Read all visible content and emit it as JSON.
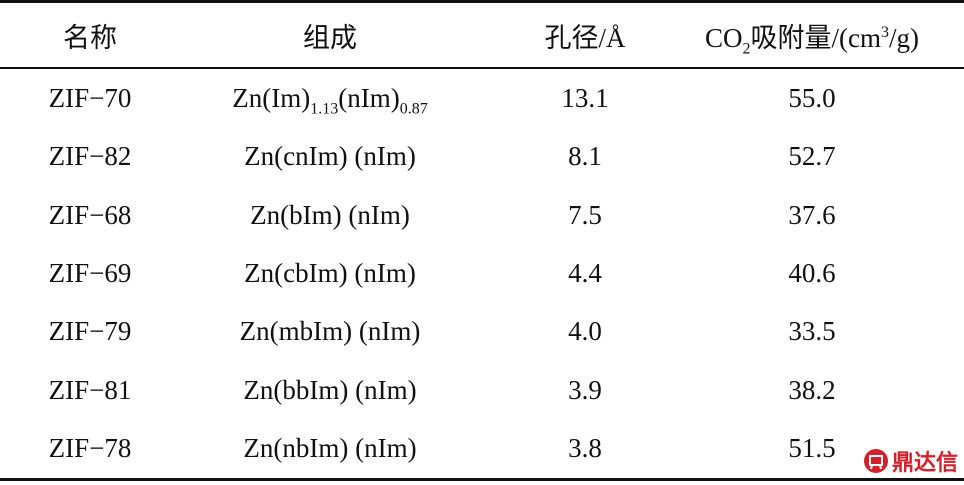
{
  "table": {
    "header": [
      "名称",
      "组成",
      "孔径/Å",
      [
        {
          "text": "CO"
        },
        {
          "sub": "2"
        },
        {
          "text": "吸附量/(cm"
        },
        {
          "sup": "3"
        },
        {
          "text": "/g)"
        }
      ]
    ],
    "rows": [
      [
        "ZIF−70",
        [
          {
            "text": "Zn(Im)"
          },
          {
            "sub": "1.13"
          },
          {
            "text": "(nIm)"
          },
          {
            "sub": "0.87"
          }
        ],
        "13.1",
        "55.0"
      ],
      [
        "ZIF−82",
        "Zn(cnIm) (nIm)",
        "8.1",
        "52.7"
      ],
      [
        "ZIF−68",
        "Zn(bIm) (nIm)",
        "7.5",
        "37.6"
      ],
      [
        "ZIF−69",
        "Zn(cbIm) (nIm)",
        "4.4",
        "40.6"
      ],
      [
        "ZIF−79",
        "Zn(mbIm) (nIm)",
        "4.0",
        "33.5"
      ],
      [
        "ZIF−81",
        "Zn(bbIm) (nIm)",
        "3.9",
        "38.2"
      ],
      [
        "ZIF−78",
        "Zn(nbIm) (nIm)",
        "3.8",
        "51.5"
      ]
    ]
  },
  "watermark": "鼎达信"
}
